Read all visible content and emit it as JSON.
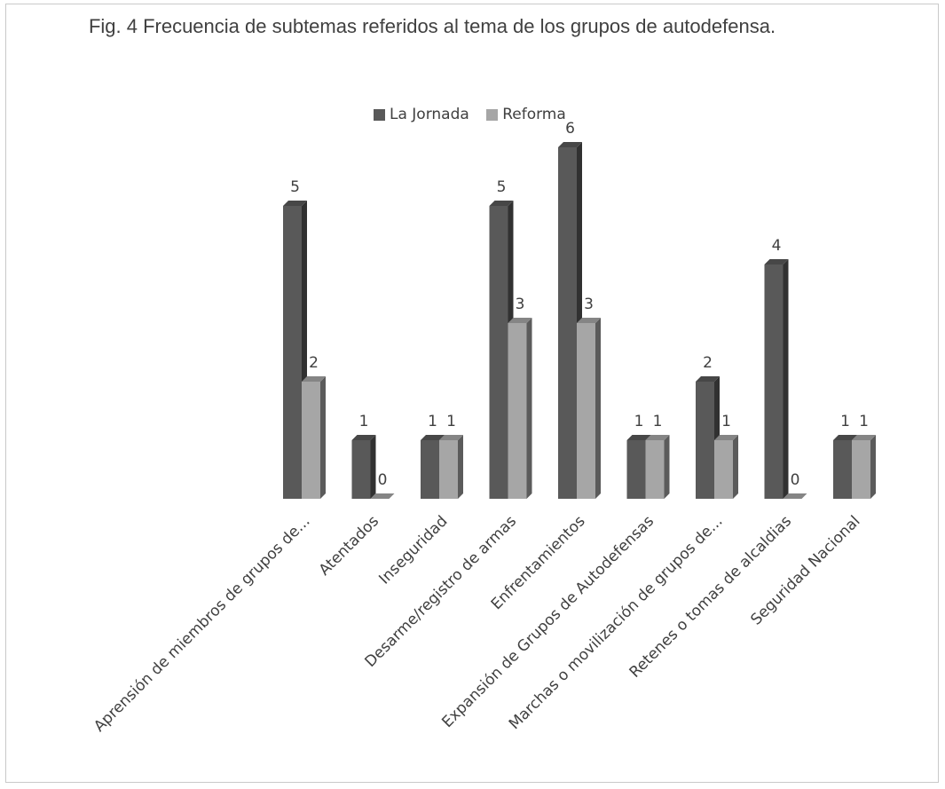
{
  "chart_data": {
    "type": "bar",
    "title": "Fig. 4 Frecuencia de subtemas referidos al tema de los grupos de autodefensa.",
    "categories": [
      "Aprensión de miembros de grupos de...",
      "Atentados",
      "Inseguridad",
      "Desarme/registro de armas",
      "Enfrentamientos",
      "Expansión de Grupos de Autodefensas",
      "Marchas o movilización de grupos de...",
      "Retenes o tomas de alcaldias",
      "Seguridad Nacional"
    ],
    "series": [
      {
        "name": "La Jornada",
        "values": [
          5,
          1,
          1,
          5,
          6,
          1,
          2,
          4,
          1
        ],
        "color": "#595959"
      },
      {
        "name": "Reforma",
        "values": [
          2,
          0,
          1,
          3,
          3,
          1,
          1,
          0,
          1
        ],
        "color": "#a6a6a6"
      }
    ],
    "ylim": [
      0,
      6
    ],
    "grid": false,
    "legend_position": "top",
    "style": "3d-column",
    "data_labels": true
  }
}
